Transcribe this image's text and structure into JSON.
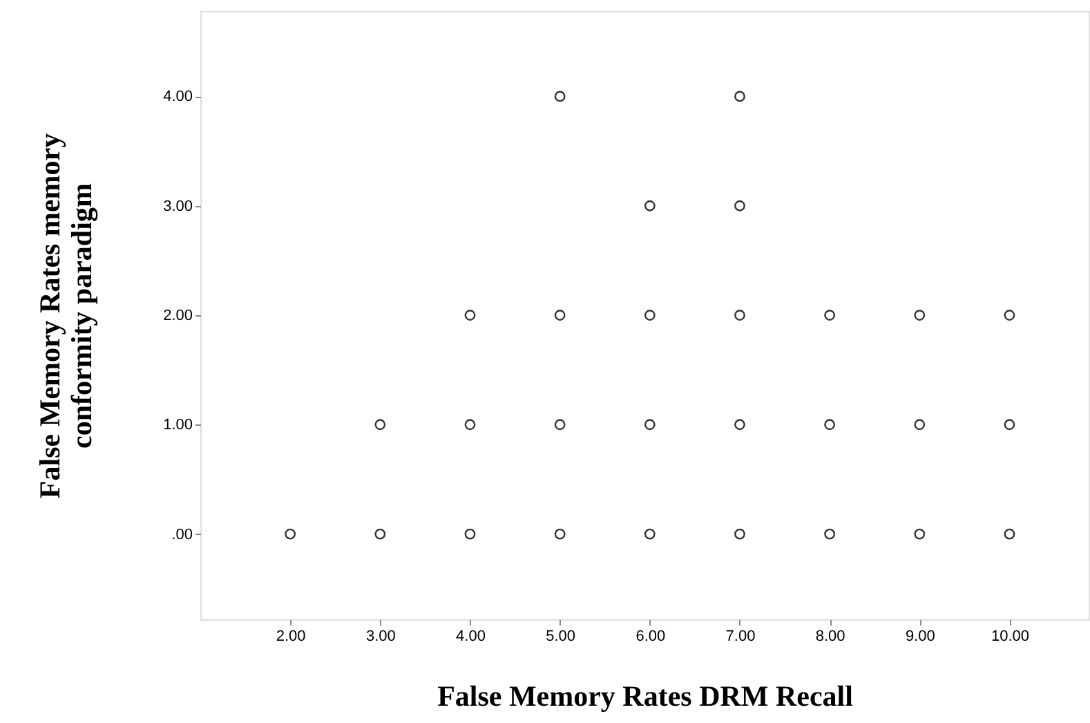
{
  "chart_data": {
    "type": "scatter",
    "xlabel": "False Memory Rates DRM Recall",
    "ylabel": "False Memory Rates memory conformity paradigm",
    "x": [
      5,
      7,
      6,
      7,
      4,
      5,
      6,
      7,
      8,
      9,
      10,
      3,
      4,
      5,
      6,
      7,
      8,
      9,
      10,
      2,
      3,
      4,
      5,
      6,
      7,
      8,
      9,
      10
    ],
    "values": [
      4,
      4,
      3,
      3,
      2,
      2,
      2,
      2,
      2,
      2,
      2,
      1,
      1,
      1,
      1,
      1,
      1,
      1,
      1,
      0,
      0,
      0,
      0,
      0,
      0,
      0,
      0,
      0
    ],
    "color": "#333333",
    "marker": "circle",
    "grid": false,
    "xlim": [
      1.0,
      10.88
    ],
    "ylim": [
      -0.78,
      4.78
    ],
    "xticks": [
      {
        "value": 2,
        "label": "2.00"
      },
      {
        "value": 3,
        "label": "3.00"
      },
      {
        "value": 4,
        "label": "4.00"
      },
      {
        "value": 5,
        "label": "5.00"
      },
      {
        "value": 6,
        "label": "6.00"
      },
      {
        "value": 7,
        "label": "7.00"
      },
      {
        "value": 8,
        "label": "8.00"
      },
      {
        "value": 9,
        "label": "9.00"
      },
      {
        "value": 10,
        "label": "10.00"
      }
    ],
    "yticks": [
      {
        "value": 0,
        "label": ".00"
      },
      {
        "value": 1,
        "label": "1.00"
      },
      {
        "value": 2,
        "label": "2.00"
      },
      {
        "value": 3,
        "label": "3.00"
      },
      {
        "value": 4,
        "label": "4.00"
      }
    ]
  }
}
